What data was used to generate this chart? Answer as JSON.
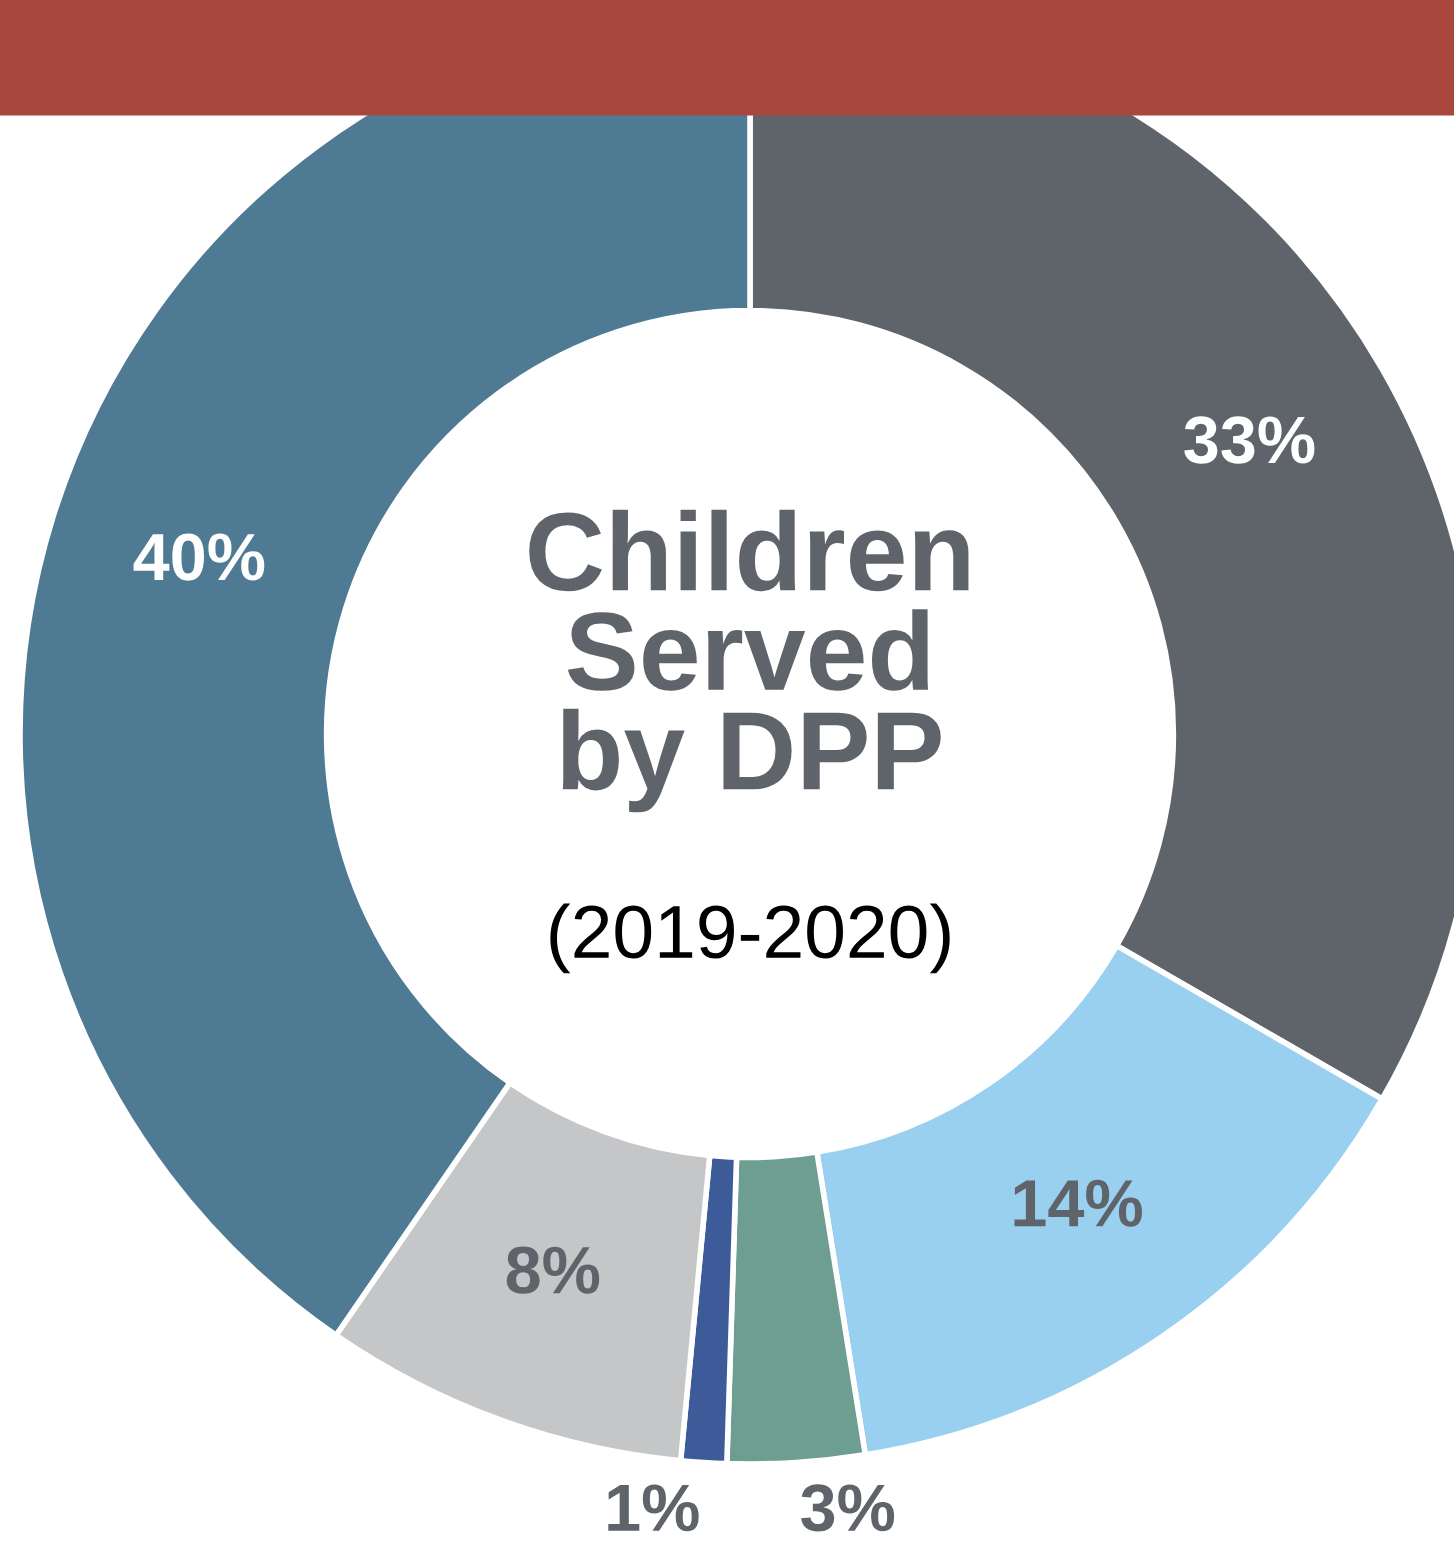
{
  "chart_data": {
    "type": "donut",
    "title": "Children\nServed\nby DPP",
    "subtitle": "(2019-2020)",
    "categories": [
      null,
      null,
      null,
      null,
      null,
      null
    ],
    "values": [
      33,
      14,
      3,
      1,
      8,
      40
    ],
    "colors": [
      "#5f646b",
      "#99d0ef",
      "#6e9e92",
      "#3d5a99",
      "#c5c6c8",
      "#4e7a94"
    ],
    "value_labels": [
      "33%",
      "14%",
      "3%",
      "1%",
      "8%",
      "40%"
    ]
  }
}
